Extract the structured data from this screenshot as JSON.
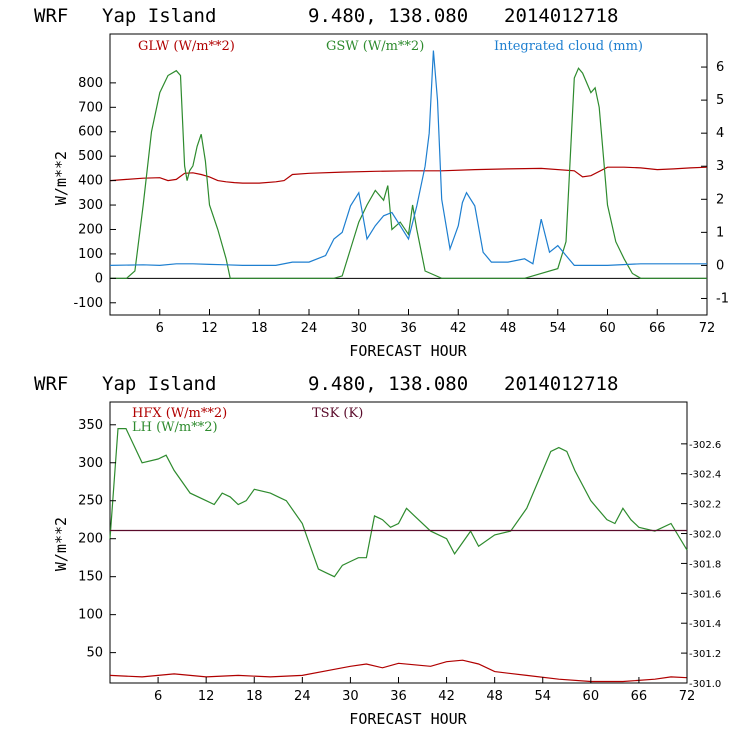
{
  "chart_data": [
    {
      "type": "line",
      "header": {
        "model": "WRF",
        "location": "Yap Island",
        "coords": "9.480, 138.080",
        "run": "2014012718"
      },
      "xlabel": "FORECAST HOUR",
      "ylabel": "W/m**2",
      "xlim": [
        0,
        72
      ],
      "ylim": [
        -150,
        1000
      ],
      "y2lim": [
        -1.5,
        7
      ],
      "xticks": [
        "6",
        "12",
        "18",
        "24",
        "30",
        "36",
        "42",
        "48",
        "54",
        "60",
        "66",
        "72"
      ],
      "yticks": [
        "-100",
        "0",
        "100",
        "200",
        "300",
        "400",
        "500",
        "600",
        "700",
        "800"
      ],
      "y2ticks": [
        "-1",
        "0",
        "1",
        "2",
        "3",
        "4",
        "5",
        "6"
      ],
      "series": [
        {
          "name": "GLW (W/m**2)",
          "color": "#b00000",
          "axis": "left",
          "x": [
            0,
            2,
            4,
            6,
            7,
            8,
            9,
            10,
            11,
            12,
            13,
            14,
            15,
            16,
            18,
            20,
            21,
            22,
            24,
            28,
            32,
            36,
            40,
            44,
            48,
            52,
            56,
            57,
            58,
            60,
            62,
            64,
            66,
            68,
            70,
            72
          ],
          "y": [
            400,
            405,
            410,
            412,
            400,
            405,
            430,
            432,
            425,
            415,
            400,
            395,
            392,
            390,
            390,
            395,
            400,
            425,
            430,
            435,
            438,
            440,
            440,
            445,
            448,
            450,
            440,
            415,
            420,
            455,
            455,
            452,
            445,
            448,
            452,
            455
          ]
        },
        {
          "name": "GSW (W/m**2)",
          "color": "#2e8b2e",
          "axis": "left",
          "x": [
            0,
            2,
            3,
            4,
            5,
            6,
            7,
            8,
            8.5,
            9,
            9.3,
            9.6,
            10,
            10.5,
            11,
            11.5,
            12,
            13,
            14,
            14.5,
            15,
            20,
            27,
            28,
            29,
            30,
            31,
            32,
            33,
            33.5,
            34,
            35,
            36,
            36.5,
            37,
            38,
            40,
            50,
            54,
            55,
            56,
            56.5,
            57,
            58,
            58.5,
            59,
            59.5,
            60,
            61,
            62,
            63,
            64,
            72
          ],
          "y": [
            0,
            0,
            30,
            300,
            600,
            760,
            830,
            850,
            830,
            460,
            400,
            440,
            460,
            540,
            590,
            480,
            300,
            200,
            80,
            0,
            0,
            0,
            0,
            10,
            120,
            230,
            300,
            360,
            320,
            380,
            200,
            230,
            180,
            300,
            200,
            30,
            0,
            0,
            40,
            150,
            820,
            860,
            840,
            760,
            780,
            700,
            500,
            300,
            150,
            80,
            20,
            0,
            0
          ]
        },
        {
          "name": "Integrated cloud (mm)",
          "color": "#1e7fd0",
          "axis": "right",
          "x": [
            0,
            4,
            6,
            8,
            10,
            12,
            14,
            16,
            18,
            20,
            22,
            24,
            26,
            27,
            28,
            29,
            30,
            31,
            32,
            33,
            34,
            35,
            36,
            37,
            38,
            38.5,
            39,
            39.5,
            40,
            41,
            42,
            42.5,
            43,
            44,
            45,
            46,
            48,
            50,
            51,
            52,
            53,
            54,
            55,
            56,
            58,
            60,
            64,
            68,
            72
          ],
          "y": [
            0,
            0.02,
            0,
            0.05,
            0.05,
            0.03,
            0.02,
            0,
            0,
            0,
            0.1,
            0.1,
            0.3,
            0.8,
            1.0,
            1.8,
            2.2,
            0.8,
            1.2,
            1.5,
            1.6,
            1.2,
            0.8,
            1.8,
            3.0,
            4.0,
            6.5,
            5.0,
            2.0,
            0.5,
            1.2,
            1.9,
            2.2,
            1.8,
            0.4,
            0.1,
            0.1,
            0.2,
            0.05,
            1.4,
            0.4,
            0.6,
            0.3,
            0,
            0,
            0,
            0.05,
            0.05,
            0.05
          ]
        }
      ]
    },
    {
      "type": "line",
      "header": {
        "model": "WRF",
        "location": "Yap Island",
        "coords": "9.480, 138.080",
        "run": "2014012718"
      },
      "xlabel": "FORECAST HOUR",
      "ylabel": "W/m**2",
      "xlim": [
        0,
        72
      ],
      "ylim": [
        10,
        380
      ],
      "y2lim": [
        301.0,
        302.88
      ],
      "xticks": [
        "6",
        "12",
        "18",
        "24",
        "30",
        "36",
        "42",
        "48",
        "54",
        "60",
        "66",
        "72"
      ],
      "yticks": [
        "50",
        "100",
        "150",
        "200",
        "250",
        "300",
        "350"
      ],
      "y2ticks": [
        "301.0",
        "301.2",
        "301.4",
        "301.6",
        "301.8",
        "302.0",
        "302.2",
        "302.4",
        "302.6"
      ],
      "series": [
        {
          "name": "HFX (W/m**2)",
          "color": "#b00000",
          "axis": "left",
          "x": [
            0,
            4,
            6,
            8,
            12,
            16,
            20,
            24,
            28,
            30,
            32,
            34,
            36,
            38,
            40,
            42,
            44,
            46,
            48,
            52,
            56,
            60,
            64,
            68,
            70,
            72
          ],
          "y": [
            20,
            18,
            20,
            22,
            18,
            20,
            18,
            20,
            28,
            32,
            35,
            30,
            36,
            34,
            32,
            38,
            40,
            35,
            25,
            20,
            15,
            12,
            12,
            15,
            18,
            17
          ]
        },
        {
          "name": "LH (W/m**2)",
          "color": "#2e8b2e",
          "axis": "left",
          "x": [
            0,
            1,
            2,
            4,
            6,
            7,
            8,
            10,
            12,
            13,
            14,
            15,
            16,
            17,
            18,
            20,
            21,
            22,
            24,
            25,
            26,
            27,
            28,
            29,
            30,
            31,
            32,
            33,
            34,
            35,
            36,
            37,
            38,
            40,
            42,
            43,
            44,
            45,
            46,
            48,
            50,
            52,
            54,
            55,
            56,
            57,
            58,
            60,
            62,
            63,
            64,
            65,
            66,
            68,
            70,
            72
          ],
          "y": [
            200,
            345,
            345,
            300,
            305,
            310,
            290,
            260,
            250,
            245,
            260,
            255,
            245,
            250,
            265,
            260,
            255,
            250,
            220,
            190,
            160,
            155,
            150,
            165,
            170,
            175,
            175,
            230,
            225,
            215,
            220,
            240,
            230,
            210,
            200,
            180,
            195,
            210,
            190,
            205,
            210,
            240,
            290,
            315,
            320,
            315,
            290,
            250,
            225,
            220,
            240,
            225,
            215,
            210,
            220,
            185
          ]
        },
        {
          "name": "TSK (K)",
          "color": "#5a0a2a",
          "axis": "right",
          "x": [
            0,
            72
          ],
          "y": [
            302.02,
            302.02
          ]
        }
      ]
    }
  ]
}
